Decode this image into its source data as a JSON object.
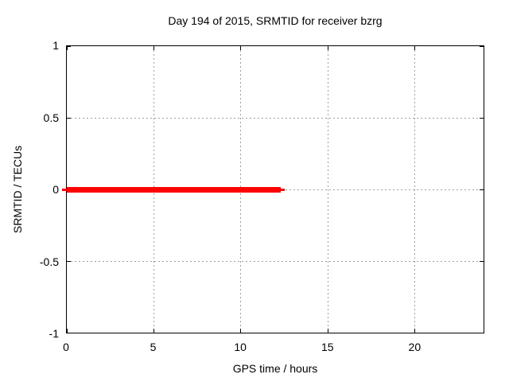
{
  "chart_data": {
    "type": "line",
    "title": "Day 194 of 2015, SRMTID for receiver bzrg",
    "xlabel": "GPS time / hours",
    "ylabel": "SRMTID / TECUs",
    "xlim": [
      0,
      24
    ],
    "ylim": [
      -1,
      1
    ],
    "x_ticks": [
      {
        "v": 0,
        "label": "0"
      },
      {
        "v": 5,
        "label": "5"
      },
      {
        "v": 10,
        "label": "10"
      },
      {
        "v": 15,
        "label": "15"
      },
      {
        "v": 20,
        "label": "20"
      }
    ],
    "y_ticks": [
      {
        "v": 1,
        "label": "1"
      },
      {
        "v": 0.5,
        "label": "0.5"
      },
      {
        "v": 0,
        "label": "0"
      },
      {
        "v": -0.5,
        "label": "-0.5"
      },
      {
        "v": -1,
        "label": "-1"
      }
    ],
    "grid": true,
    "grid_x_values": [
      5,
      10,
      15,
      20
    ],
    "grid_y_values": [
      0.5,
      0,
      -0.5
    ],
    "legend": "none",
    "series": [
      {
        "name": "SRMTID",
        "color": "#ff0000",
        "y": 0,
        "x_start": 0,
        "x_end": 12.3,
        "points": [
          [
            0,
            0
          ],
          [
            12.3,
            0
          ]
        ]
      }
    ],
    "colors": {
      "background": "#ffffff",
      "border": "#000000",
      "grid": "#9e9e9e",
      "text": "#000000"
    }
  }
}
